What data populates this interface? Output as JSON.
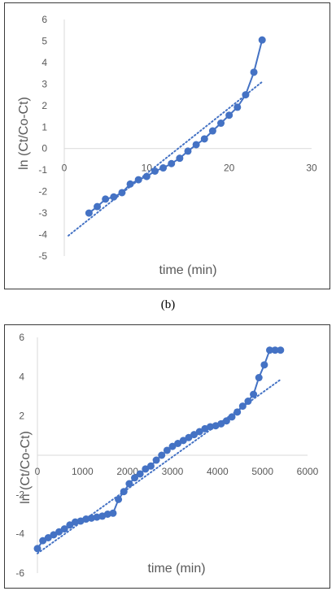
{
  "chart_data": [
    {
      "type": "scatter",
      "xlabel": "time (min)",
      "ylabel": "ln (Ct/Co-Ct)",
      "xlim": [
        0,
        30
      ],
      "ylim": [
        -5,
        6
      ],
      "xticks": [
        "0",
        "10",
        "20",
        "30"
      ],
      "yticks": [
        "6",
        "5",
        "4",
        "3",
        "2",
        "1",
        "0",
        "-1",
        "-2",
        "-3",
        "-4",
        "-5"
      ],
      "series": [
        {
          "x": [
            3,
            4,
            5,
            6,
            7,
            8,
            9,
            10,
            11,
            12,
            13,
            14,
            15,
            16,
            17,
            18,
            19,
            20,
            21,
            22,
            23,
            24
          ],
          "y": [
            -3.0,
            -2.7,
            -2.35,
            -2.25,
            -2.05,
            -1.65,
            -1.45,
            -1.3,
            -1.05,
            -0.9,
            -0.7,
            -0.45,
            -0.12,
            0.18,
            0.45,
            0.82,
            1.18,
            1.55,
            1.92,
            2.5,
            3.55,
            5.05
          ]
        }
      ],
      "trendline": {
        "x": [
          0.5,
          24
        ],
        "y": [
          -4.05,
          3.1
        ]
      },
      "grid": false,
      "legend": "none"
    },
    {
      "type": "scatter",
      "xlabel": "time (min)",
      "ylabel": "ln (Ct/Co-Ct)",
      "xlim": [
        0,
        6000
      ],
      "ylim": [
        -6,
        6
      ],
      "xticks": [
        "0",
        "1000",
        "2000",
        "3000",
        "4000",
        "5000",
        "6000"
      ],
      "yticks": [
        "6",
        "4",
        "2",
        "-2",
        "-4",
        "-6"
      ],
      "series": [
        {
          "x": [
            0,
            120,
            240,
            360,
            480,
            600,
            720,
            840,
            960,
            1080,
            1200,
            1320,
            1440,
            1560,
            1680,
            1800,
            1920,
            2040,
            2160,
            2280,
            2400,
            2520,
            2640,
            2760,
            2880,
            3000,
            3120,
            3240,
            3360,
            3480,
            3600,
            3720,
            3840,
            3960,
            4080,
            4200,
            4320,
            4440,
            4560,
            4680,
            4800,
            4920,
            5040,
            5160,
            5280,
            5400
          ],
          "y": [
            -4.75,
            -4.35,
            -4.2,
            -4.05,
            -3.9,
            -3.75,
            -3.55,
            -3.4,
            -3.35,
            -3.25,
            -3.2,
            -3.15,
            -3.1,
            -3.0,
            -2.95,
            -2.25,
            -1.85,
            -1.45,
            -1.15,
            -0.95,
            -0.7,
            -0.55,
            -0.25,
            0.0,
            0.25,
            0.45,
            0.6,
            0.75,
            0.9,
            1.05,
            1.2,
            1.35,
            1.45,
            1.5,
            1.6,
            1.75,
            1.95,
            2.2,
            2.5,
            2.75,
            3.1,
            3.95,
            4.6,
            5.35,
            5.35,
            5.35
          ]
        }
      ],
      "trendline": {
        "x": [
          0,
          5400
        ],
        "y": [
          -5.0,
          3.85
        ]
      },
      "grid": false,
      "legend": "none"
    }
  ],
  "caption": "(b)",
  "colors": {
    "series": "#4472c4",
    "axis": "#d9d9d9",
    "text": "#595959"
  }
}
